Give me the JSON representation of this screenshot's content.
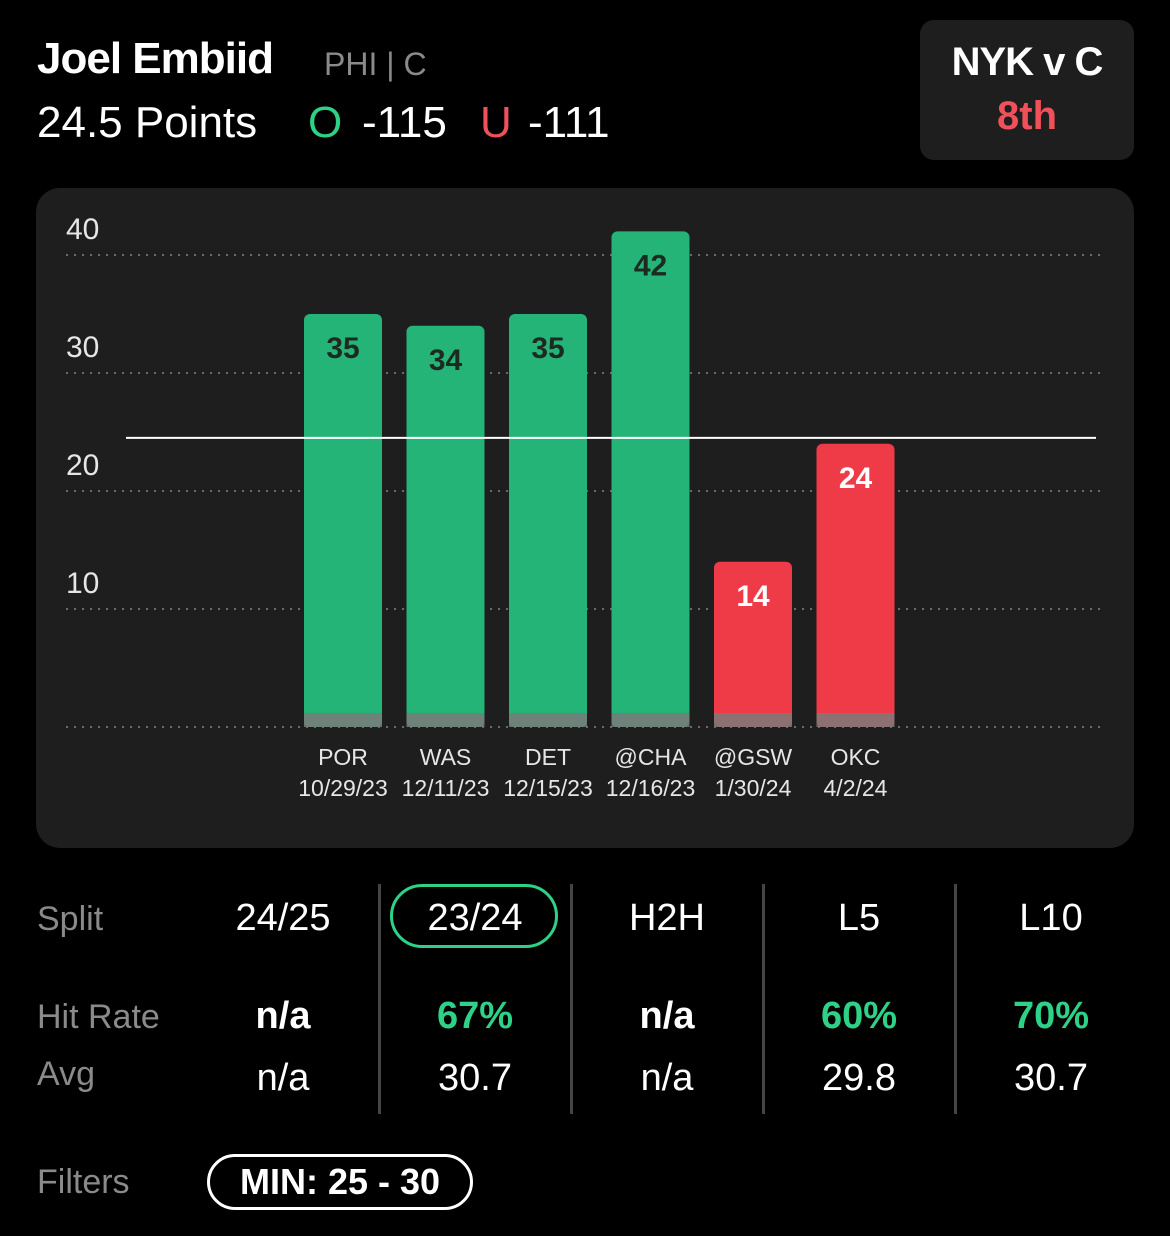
{
  "header": {
    "player_name": "Joel Embiid",
    "team_position": "PHI | C",
    "prop_line": "24.5 Points",
    "over": {
      "label": "O",
      "odds": "-115",
      "color": "#2ed286"
    },
    "under": {
      "label": "U",
      "odds": "-111",
      "color": "#f0505a"
    }
  },
  "game": {
    "matchup": "NYK v C",
    "period": "8th"
  },
  "chart_data": {
    "type": "bar",
    "categories": [
      "POR",
      "WAS",
      "DET",
      "@CHA",
      "@GSW",
      "OKC"
    ],
    "dates": [
      "10/29/23",
      "12/11/23",
      "12/15/23",
      "12/16/23",
      "1/30/24",
      "4/2/24"
    ],
    "values": [
      35,
      34,
      35,
      42,
      14,
      24
    ],
    "threshold": 24.5,
    "y_ticks": [
      10,
      20,
      30,
      40
    ],
    "ylim": [
      0,
      40
    ],
    "grid": true,
    "colors": {
      "over": "#24b478",
      "under": "#ef3b47"
    }
  },
  "splits": {
    "labels": {
      "split": "Split",
      "hit_rate": "Hit Rate",
      "avg": "Avg"
    },
    "columns": [
      {
        "name": "24/25",
        "hit_rate": "n/a",
        "avg": "n/a",
        "hit_green": false
      },
      {
        "name": "23/24",
        "hit_rate": "67%",
        "avg": "30.7",
        "hit_green": true,
        "selected": true
      },
      {
        "name": "H2H",
        "hit_rate": "n/a",
        "avg": "n/a",
        "hit_green": false
      },
      {
        "name": "L5",
        "hit_rate": "60%",
        "avg": "29.8",
        "hit_green": true
      },
      {
        "name": "L10",
        "hit_rate": "70%",
        "avg": "30.7",
        "hit_green": true
      }
    ]
  },
  "filters": {
    "label": "Filters",
    "active": "MIN: 25 - 30"
  }
}
